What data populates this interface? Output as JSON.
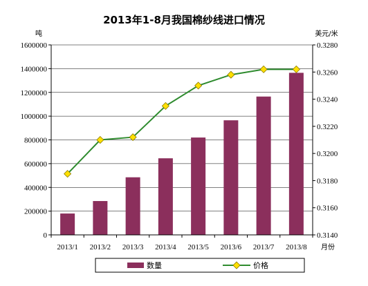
{
  "chart_data": {
    "type": "bar",
    "title": "2013年1-8月我国棉纱线进口情况",
    "categories": [
      "2013/1",
      "2013/2",
      "2013/3",
      "2013/4",
      "2013/5",
      "2013/6",
      "2013/7",
      "2013/8"
    ],
    "xlabel": "月份",
    "series": [
      {
        "name": "数量",
        "type": "bar",
        "axis": "left",
        "color": "#8B2F5C",
        "values": [
          180000,
          285000,
          485000,
          645000,
          820000,
          965000,
          1165000,
          1365000
        ]
      },
      {
        "name": "价格",
        "type": "line",
        "axis": "right",
        "color": "#2E8B2E",
        "marker_color": "#FFE000",
        "values": [
          0.3185,
          0.321,
          0.3212,
          0.3235,
          0.325,
          0.3258,
          0.3262,
          0.3262
        ]
      }
    ],
    "left_axis": {
      "unit": "吨",
      "ylim": [
        0,
        1600000
      ],
      "ticks": [
        "0",
        "200000",
        "400000",
        "600000",
        "800000",
        "1000000",
        "1200000",
        "1400000",
        "1600000"
      ]
    },
    "right_axis": {
      "unit": "美元/米",
      "ylim": [
        0.314,
        0.328
      ],
      "ticks": [
        "0.3140",
        "0.3160",
        "0.3180",
        "0.3200",
        "0.3220",
        "0.3240",
        "0.3260",
        "0.3280"
      ]
    },
    "grid": "horizontal",
    "legend_position": "bottom"
  }
}
